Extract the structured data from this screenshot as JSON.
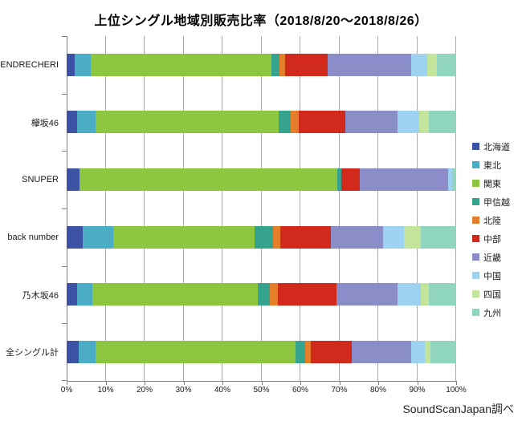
{
  "title": "上位シングル地域別販売比率（2018/8/20～2018/8/26）",
  "source_note": "SoundScanJapan調べ",
  "chart_data": {
    "type": "bar",
    "variant": "horizontal-stacked-100pct",
    "title": "上位シングル地域別販売比率（2018/8/20～2018/8/26）",
    "categories": [
      "ENDRECHERI",
      "欅坂46",
      "SNUPER",
      "back number",
      "乃木坂46",
      "全シングル計"
    ],
    "series": [
      {
        "name": "北海道",
        "color": "#3b52a5",
        "values": [
          2.0,
          2.7,
          3.3,
          4.2,
          2.7,
          3.0
        ]
      },
      {
        "name": "東北",
        "color": "#4bacc6",
        "values": [
          4.2,
          4.8,
          0.0,
          7.7,
          3.8,
          4.5
        ]
      },
      {
        "name": "関東",
        "color": "#8cc63e",
        "values": [
          46.4,
          47.0,
          66.2,
          36.3,
          42.6,
          51.2
        ]
      },
      {
        "name": "甲信越",
        "color": "#35a38d",
        "values": [
          2.0,
          3.0,
          1.0,
          4.7,
          3.1,
          2.5
        ]
      },
      {
        "name": "北陸",
        "color": "#e57e2a",
        "values": [
          1.4,
          2.0,
          0.0,
          2.0,
          2.0,
          1.4
        ]
      },
      {
        "name": "中部",
        "color": "#d2291d",
        "values": [
          11.0,
          12.0,
          4.8,
          12.9,
          15.0,
          10.6
        ]
      },
      {
        "name": "近畿",
        "color": "#8b8dc8",
        "values": [
          21.5,
          13.5,
          22.7,
          13.4,
          15.8,
          15.3
        ]
      },
      {
        "name": "中国",
        "color": "#9dd3f0",
        "values": [
          4.0,
          5.5,
          1.0,
          5.4,
          6.0,
          3.4
        ]
      },
      {
        "name": "四国",
        "color": "#c3e59b",
        "values": [
          2.5,
          2.5,
          0.0,
          4.3,
          1.9,
          1.6
        ]
      },
      {
        "name": "九州",
        "color": "#90d5be",
        "values": [
          5.0,
          7.0,
          1.0,
          9.1,
          7.1,
          6.5
        ]
      }
    ],
    "x_ticks": [
      "0%",
      "10%",
      "20%",
      "30%",
      "40%",
      "50%",
      "60%",
      "70%",
      "80%",
      "90%",
      "100%"
    ],
    "xlim": [
      0,
      100
    ],
    "grid": "vertical",
    "legend_position": "right",
    "unit": "percent"
  }
}
